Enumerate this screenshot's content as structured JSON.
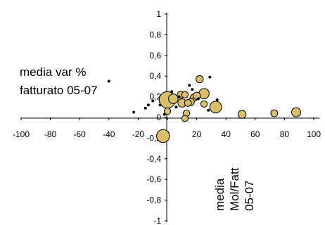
{
  "chart_data": {
    "type": "scatter",
    "title": "",
    "xlim": [
      -100,
      100
    ],
    "ylim": [
      -1,
      1
    ],
    "x_ticks": [
      "-100",
      "-80",
      "-60",
      "-40",
      "-20",
      "0",
      "20",
      "40",
      "60",
      "80",
      "100"
    ],
    "y_ticks": [
      "1",
      "0,8",
      "0,6",
      "0,4",
      "0,2",
      "0",
      "-0,2",
      "-0,4",
      "-0,6",
      "-0,8",
      "-1"
    ],
    "y_label_lines": [
      "media var %",
      "fatturato 05-07"
    ],
    "x_label_lines": [
      "media",
      "Mol/Fatt",
      "05-07"
    ],
    "grid": false,
    "colors": {
      "bubble_fill": "#D9BF6C",
      "bubble_stroke": "#000000",
      "dot": "#000000"
    },
    "points": [
      {
        "x": 0,
        "y": 0.17,
        "size": 3.2,
        "kind": "bubble"
      },
      {
        "x": -3,
        "y": -0.18,
        "size": 2.3,
        "kind": "bubble"
      },
      {
        "x": 33,
        "y": 0.1,
        "size": 2.0,
        "kind": "bubble"
      },
      {
        "x": 25,
        "y": 0.23,
        "size": 1.6,
        "kind": "bubble"
      },
      {
        "x": 4,
        "y": 0.18,
        "size": 1.4,
        "kind": "bubble"
      },
      {
        "x": 88,
        "y": 0.05,
        "size": 1.3,
        "kind": "bubble"
      },
      {
        "x": 10,
        "y": 0.14,
        "size": 1.1,
        "kind": "bubble"
      },
      {
        "x": 51,
        "y": 0.03,
        "size": 1.0,
        "kind": "bubble"
      },
      {
        "x": 22,
        "y": 0.37,
        "size": 0.8,
        "kind": "bubble"
      },
      {
        "x": 18,
        "y": 0.19,
        "size": 0.8,
        "kind": "bubble"
      },
      {
        "x": 20,
        "y": 0.21,
        "size": 0.8,
        "kind": "bubble"
      },
      {
        "x": 16,
        "y": 0.15,
        "size": 0.75,
        "kind": "bubble"
      },
      {
        "x": 14,
        "y": 0.14,
        "size": 0.7,
        "kind": "bubble"
      },
      {
        "x": 73,
        "y": 0.04,
        "size": 0.7,
        "kind": "bubble"
      },
      {
        "x": 9,
        "y": 0.22,
        "size": 0.7,
        "kind": "bubble"
      },
      {
        "x": 12,
        "y": 0.22,
        "size": 0.6,
        "kind": "bubble"
      },
      {
        "x": 25,
        "y": 0.13,
        "size": 0.6,
        "kind": "bubble"
      },
      {
        "x": 13,
        "y": 0.04,
        "size": 0.6,
        "kind": "bubble"
      },
      {
        "x": 0,
        "y": 0.06,
        "size": 0.6,
        "kind": "bubble"
      },
      {
        "x": 12,
        "y": -0.01,
        "size": 0.55,
        "kind": "bubble"
      },
      {
        "x": -40,
        "y": 0.35,
        "size": 0.35,
        "kind": "dot"
      },
      {
        "x": -23,
        "y": 0.05,
        "size": 0.35,
        "kind": "dot"
      },
      {
        "x": -15,
        "y": 0.09,
        "size": 0.35,
        "kind": "dot"
      },
      {
        "x": -13,
        "y": 0.12,
        "size": 0.35,
        "kind": "dot"
      },
      {
        "x": -10,
        "y": 0.16,
        "size": 0.35,
        "kind": "dot"
      },
      {
        "x": -5,
        "y": 0.12,
        "size": 0.35,
        "kind": "dot"
      },
      {
        "x": -2,
        "y": 0.03,
        "size": 0.35,
        "kind": "dot"
      },
      {
        "x": 3,
        "y": 0.25,
        "size": 0.35,
        "kind": "dot"
      },
      {
        "x": 6,
        "y": 0.1,
        "size": 0.35,
        "kind": "dot"
      },
      {
        "x": 8,
        "y": 0.2,
        "size": 0.35,
        "kind": "dot"
      },
      {
        "x": 15,
        "y": 0.31,
        "size": 0.35,
        "kind": "dot"
      },
      {
        "x": 17,
        "y": 0.27,
        "size": 0.35,
        "kind": "dot"
      },
      {
        "x": 29,
        "y": 0.39,
        "size": 0.35,
        "kind": "dot"
      },
      {
        "x": 34,
        "y": 0.17,
        "size": 0.35,
        "kind": "dot"
      },
      {
        "x": 28,
        "y": 0.07,
        "size": 0.35,
        "kind": "dot"
      },
      {
        "x": 21,
        "y": 0.18,
        "size": 0.35,
        "kind": "dot"
      }
    ]
  }
}
